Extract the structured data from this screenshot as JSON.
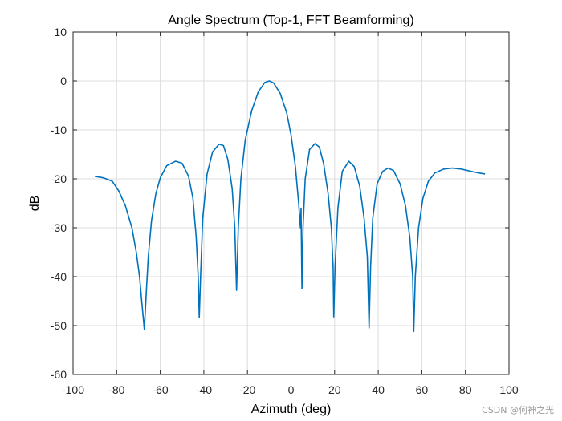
{
  "chart_data": {
    "type": "line",
    "title": "Angle Spectrum (Top-1, FFT Beamforming)",
    "xlabel": "Azimuth (deg)",
    "ylabel": "dB",
    "xlim": [
      -100,
      100
    ],
    "ylim": [
      -60,
      10
    ],
    "xticks": [
      -100,
      -80,
      -60,
      -40,
      -20,
      0,
      20,
      40,
      60,
      80,
      100
    ],
    "yticks": [
      10,
      0,
      -10,
      -20,
      -30,
      -40,
      -50,
      -60
    ],
    "grid": true,
    "series": [
      {
        "name": "Angle Spectrum",
        "color": "#0072BD",
        "points": [
          [
            -90,
            -19.5
          ],
          [
            -86,
            -19.8
          ],
          [
            -82,
            -20.5
          ],
          [
            -79,
            -22.5
          ],
          [
            -76,
            -25.5
          ],
          [
            -73,
            -30
          ],
          [
            -71,
            -35
          ],
          [
            -69.5,
            -40
          ],
          [
            -68.5,
            -45
          ],
          [
            -67.3,
            -50.8
          ],
          [
            -66.5,
            -44
          ],
          [
            -65.5,
            -36
          ],
          [
            -64,
            -28.5
          ],
          [
            -62,
            -23
          ],
          [
            -60,
            -19.8
          ],
          [
            -57,
            -17.3
          ],
          [
            -53,
            -16.4
          ],
          [
            -50,
            -16.8
          ],
          [
            -47,
            -19.5
          ],
          [
            -45,
            -24
          ],
          [
            -43.5,
            -32
          ],
          [
            -42.6,
            -40
          ],
          [
            -42.1,
            -48.3
          ],
          [
            -41.5,
            -40
          ],
          [
            -40.5,
            -28
          ],
          [
            -38.5,
            -19
          ],
          [
            -36,
            -14.5
          ],
          [
            -33,
            -12.9
          ],
          [
            -31,
            -13.2
          ],
          [
            -29,
            -16
          ],
          [
            -27,
            -22
          ],
          [
            -25.8,
            -30
          ],
          [
            -25,
            -42.8
          ],
          [
            -24.2,
            -30
          ],
          [
            -23,
            -20
          ],
          [
            -21,
            -12
          ],
          [
            -18,
            -6
          ],
          [
            -15,
            -2.2
          ],
          [
            -12,
            -0.3
          ],
          [
            -10,
            0
          ],
          [
            -8,
            -0.4
          ],
          [
            -5,
            -2.5
          ],
          [
            -2,
            -6.5
          ],
          [
            0,
            -11
          ],
          [
            2,
            -17.5
          ],
          [
            3.5,
            -25
          ],
          [
            4.3,
            -30
          ],
          [
            4.6,
            -26
          ],
          [
            5,
            -42.5
          ],
          [
            5.5,
            -30
          ],
          [
            6.5,
            -20
          ],
          [
            8.5,
            -14
          ],
          [
            11,
            -12.8
          ],
          [
            13,
            -13.5
          ],
          [
            15,
            -17
          ],
          [
            17,
            -23
          ],
          [
            18.5,
            -30
          ],
          [
            19.3,
            -38
          ],
          [
            19.6,
            -48.2
          ],
          [
            20.2,
            -38
          ],
          [
            21.5,
            -26
          ],
          [
            23.5,
            -18.5
          ],
          [
            26.5,
            -16.4
          ],
          [
            29,
            -17.5
          ],
          [
            31.5,
            -21.5
          ],
          [
            33.5,
            -28
          ],
          [
            35,
            -36
          ],
          [
            35.8,
            -50.5
          ],
          [
            36.5,
            -38
          ],
          [
            37.5,
            -28
          ],
          [
            39.5,
            -21
          ],
          [
            42,
            -18.5
          ],
          [
            44.5,
            -17.8
          ],
          [
            47,
            -18.3
          ],
          [
            50,
            -21
          ],
          [
            52.5,
            -25.5
          ],
          [
            54.5,
            -32
          ],
          [
            55.8,
            -40
          ],
          [
            56.3,
            -51.2
          ],
          [
            57,
            -40
          ],
          [
            58.5,
            -30
          ],
          [
            60.5,
            -24
          ],
          [
            63,
            -20.5
          ],
          [
            66,
            -18.8
          ],
          [
            70,
            -18
          ],
          [
            74,
            -17.8
          ],
          [
            78,
            -18
          ],
          [
            82,
            -18.4
          ],
          [
            86,
            -18.8
          ],
          [
            89,
            -19
          ]
        ]
      }
    ]
  },
  "watermark": "CSDN @何神之光"
}
